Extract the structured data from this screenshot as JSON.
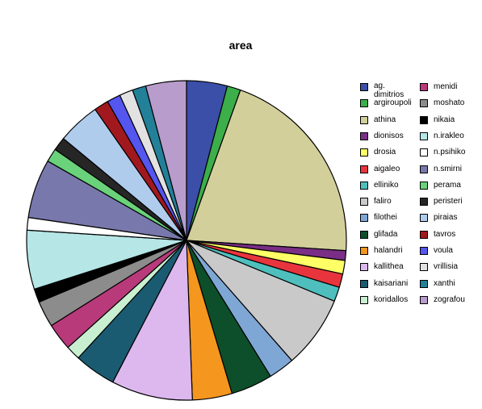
{
  "chart_data": {
    "type": "pie",
    "title": "area",
    "legend_position": "right",
    "categories": [
      "ag. dimitrios",
      "argiroupoli",
      "athina",
      "dionisos",
      "drosia",
      "aigaleo",
      "elliniko",
      "faliro",
      "filothei",
      "glifada",
      "halandri",
      "kallithea",
      "kaisariani",
      "koridallos",
      "menidi",
      "moshato",
      "nikaia",
      "n.irakleo",
      "n.psihiko",
      "n.smirni",
      "perama",
      "peristeri",
      "piraias",
      "tavros",
      "voula",
      "vrillisia",
      "xanthi",
      "zografou"
    ],
    "values": [
      4.2,
      1.4,
      21.0,
      1.0,
      1.4,
      1.4,
      1.5,
      7.5,
      2.7,
      4.3,
      4.1,
      8.4,
      4.3,
      1.5,
      2.8,
      2.7,
      1.4,
      6.1,
      1.3,
      6.1,
      1.4,
      1.4,
      4.4,
      1.5,
      1.4,
      1.4,
      1.4,
      4.2
    ],
    "colors": [
      "#3b4ea8",
      "#3cae4a",
      "#d3cf9b",
      "#7a2e86",
      "#ffff66",
      "#e8353d",
      "#4ebfbd",
      "#c9c9c9",
      "#7fa7d5",
      "#0d4f2a",
      "#f5961e",
      "#dcb8ee",
      "#1b5b72",
      "#c8f0d0",
      "#b83a7a",
      "#8c8c8c",
      "#000000",
      "#b6e6e6",
      "#ffffff",
      "#7878ac",
      "#6ad27a",
      "#262626",
      "#b0cced",
      "#a1191e",
      "#5555f0",
      "#e2e2e2",
      "#228199",
      "#b89ccc"
    ]
  }
}
